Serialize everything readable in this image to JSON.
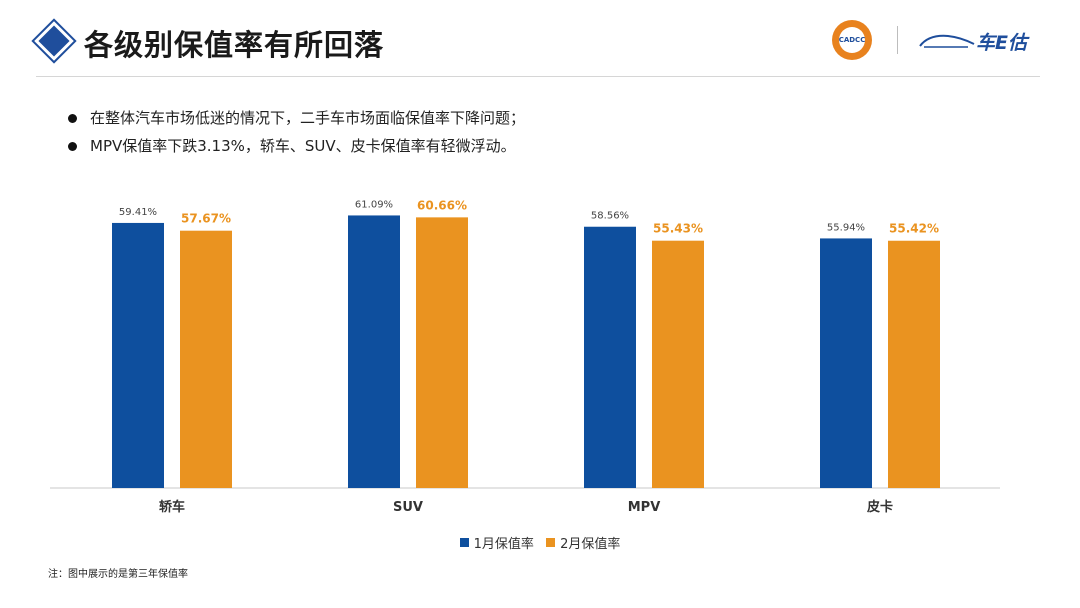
{
  "header": {
    "title": "各级别保值率有所回落",
    "logo_cadcc_text": "CADCC",
    "logo_brand_text": "车E估"
  },
  "bullets": [
    "在整体汽车市场低迷的情况下，二手车市场面临保值率下降问题；",
    "MPV保值率下跌3.13%，轿车、SUV、皮卡保值率有轻微浮动。"
  ],
  "chart_data": {
    "type": "bar",
    "categories": [
      "轿车",
      "SUV",
      "MPV",
      "皮卡"
    ],
    "series": [
      {
        "name": "1月保值率",
        "values": [
          59.41,
          61.09,
          58.56,
          55.94
        ],
        "labels": [
          "59.41%",
          "61.09%",
          "58.56%",
          "55.94%"
        ],
        "color": "#0e4f9e"
      },
      {
        "name": "2月保值率",
        "values": [
          57.67,
          60.66,
          55.43,
          55.42
        ],
        "labels": [
          "57.67%",
          "60.66%",
          "55.43%",
          "55.42%"
        ],
        "color": "#ea9320"
      }
    ],
    "ylim": [
      0,
      65
    ],
    "grid": false,
    "legend_position": "bottom"
  },
  "footnote": "注：图中展示的是第三年保值率"
}
